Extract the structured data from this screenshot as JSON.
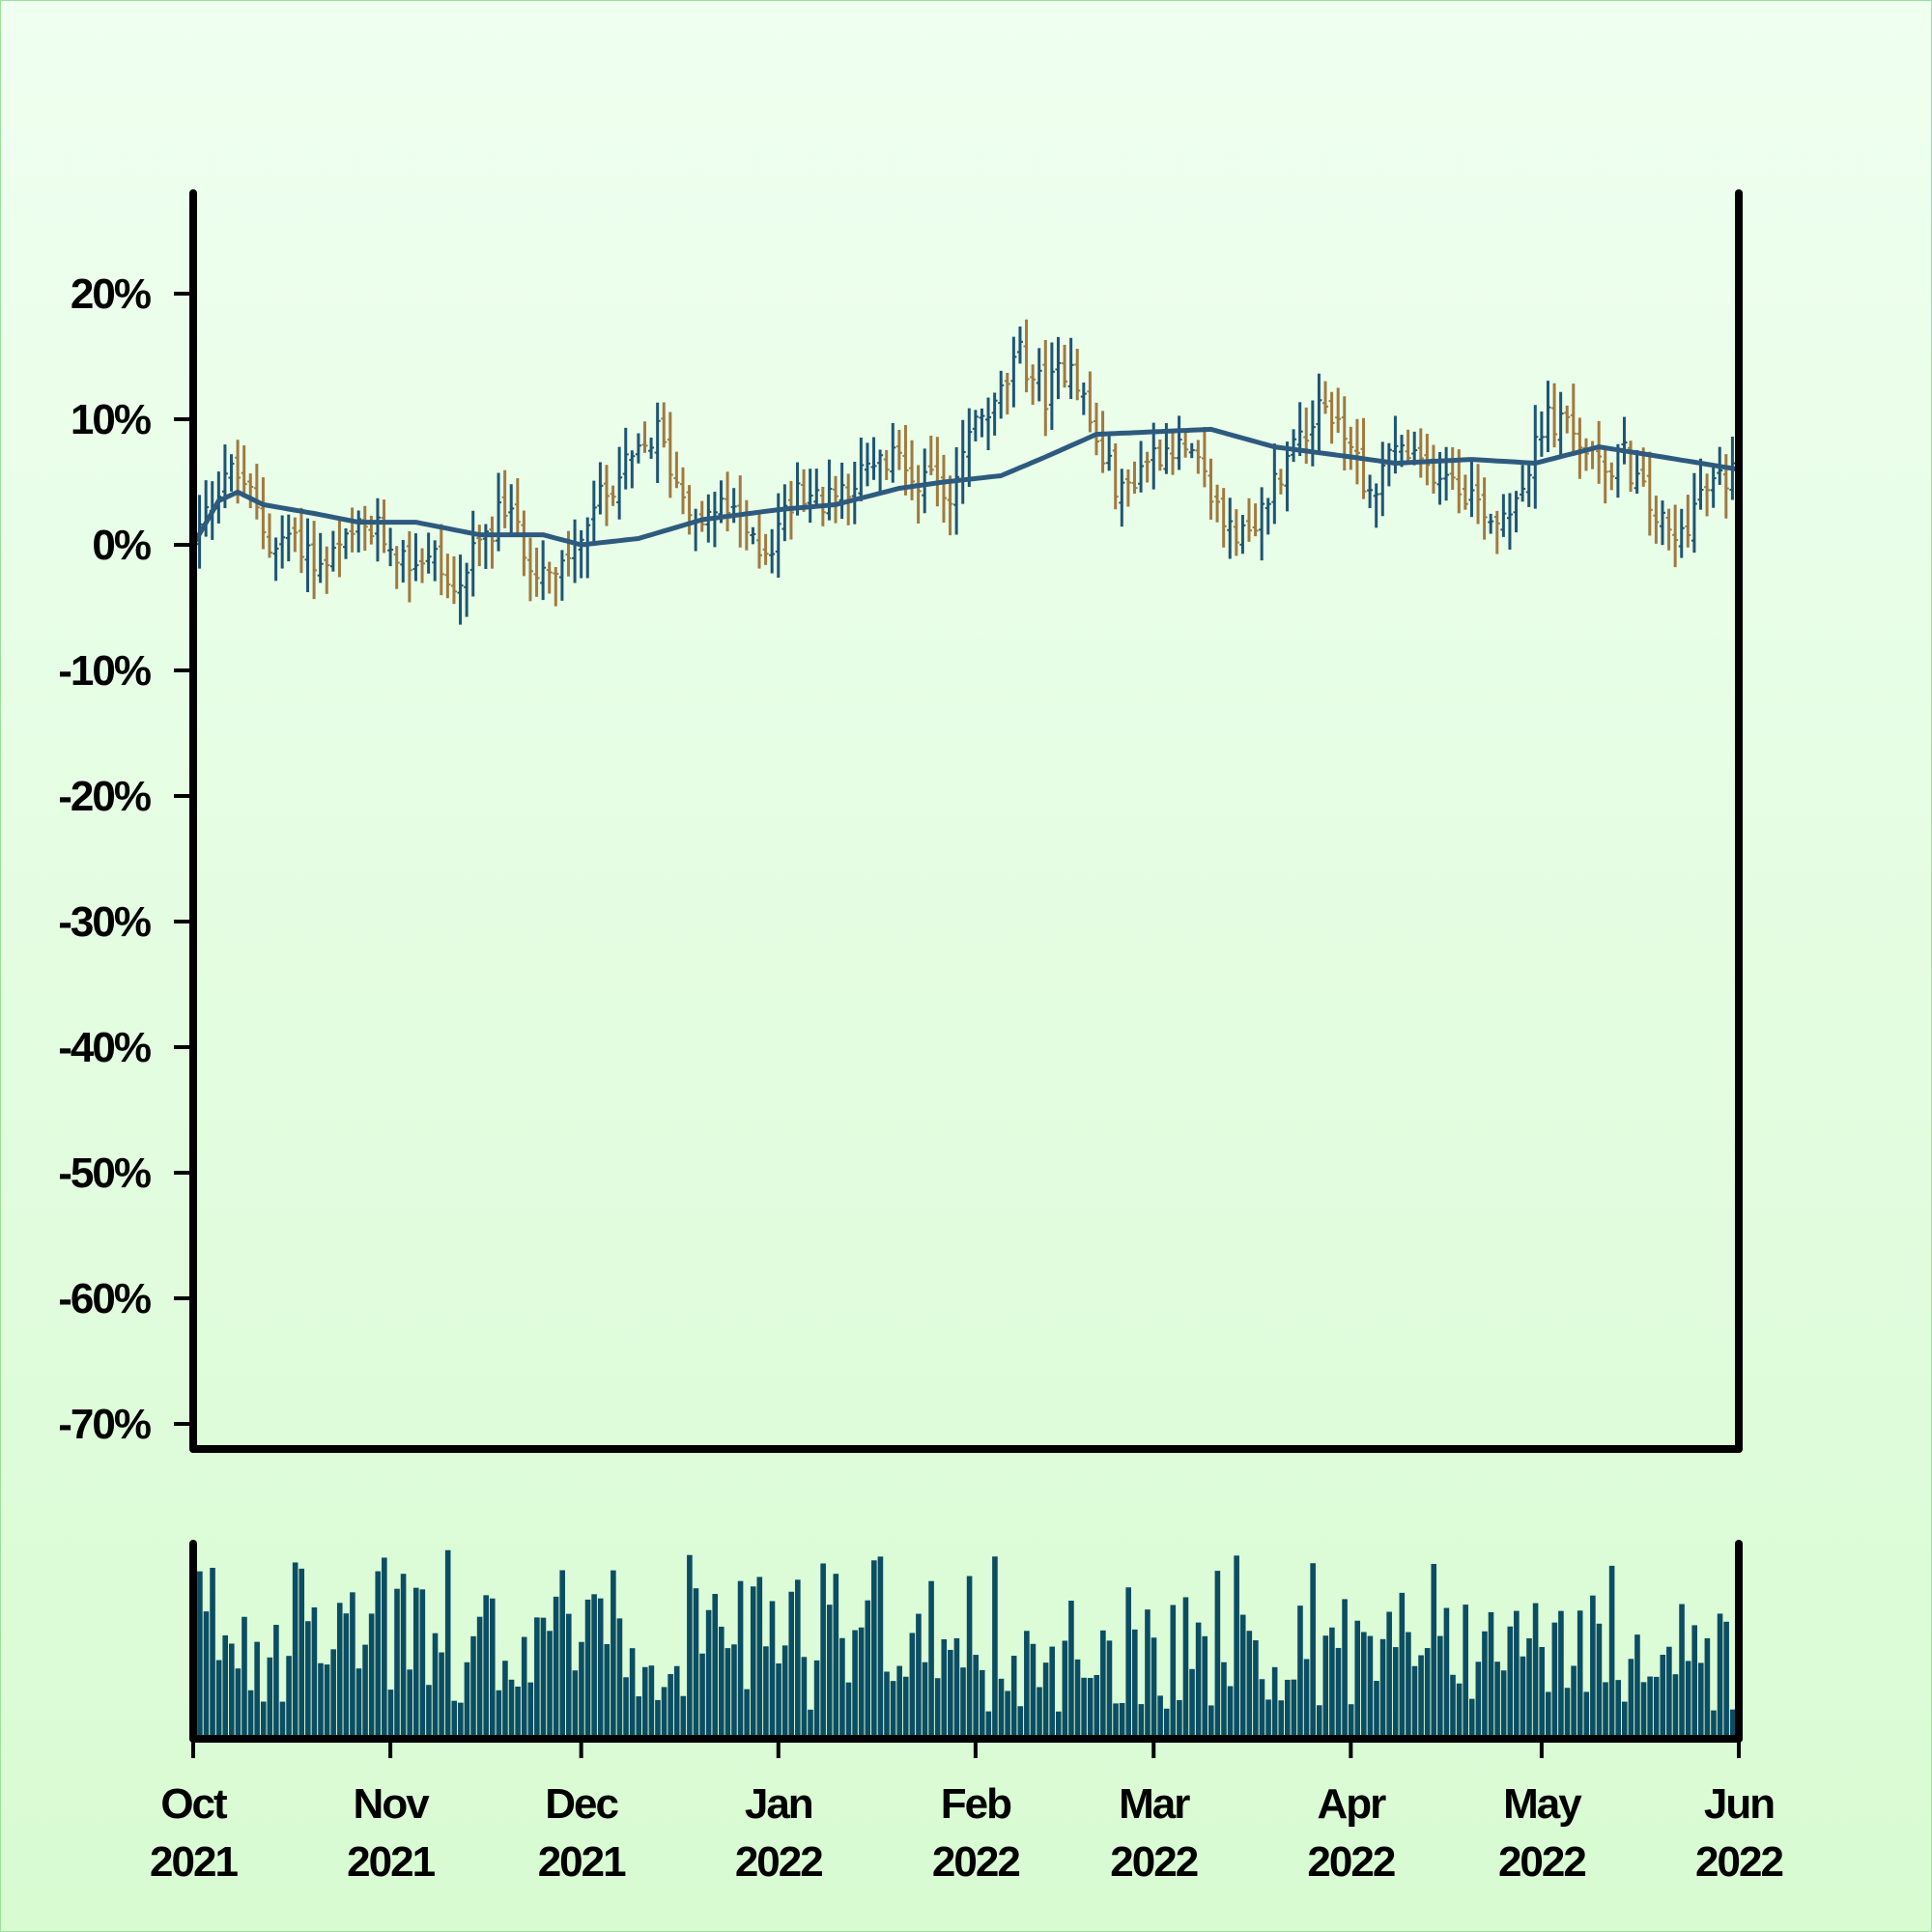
{
  "chart_data": [
    {
      "type": "ohlc",
      "title": "",
      "xlabel": "",
      "ylabel": "",
      "y_unit": "%",
      "ylim": [
        -72,
        28
      ],
      "y_ticks": [
        20,
        10,
        0,
        -10,
        -20,
        -30,
        -40,
        -50,
        -60,
        -70
      ],
      "y_tick_labels": [
        "20%",
        "10%",
        "0%",
        "-10%",
        "-20%",
        "-30%",
        "-40%",
        "-50%",
        "-60%",
        "-70%"
      ],
      "x_range": [
        "2021-10-01",
        "2022-06-01"
      ],
      "x_ticks": [
        {
          "date": "2021-10-01",
          "month": "Oct",
          "year": "2021"
        },
        {
          "date": "2021-11-01",
          "month": "Nov",
          "year": "2021"
        },
        {
          "date": "2021-12-01",
          "month": "Dec",
          "year": "2021"
        },
        {
          "date": "2022-01-01",
          "month": "Jan",
          "year": "2022"
        },
        {
          "date": "2022-02-01",
          "month": "Feb",
          "year": "2022"
        },
        {
          "date": "2022-03-01",
          "month": "Mar",
          "year": "2022"
        },
        {
          "date": "2022-04-01",
          "month": "Apr",
          "year": "2022"
        },
        {
          "date": "2022-05-01",
          "month": "May",
          "year": "2022"
        },
        {
          "date": "2022-06-01",
          "month": "Jun",
          "year": "2022"
        }
      ],
      "close_anchors": [
        [
          "2021-10-01",
          0
        ],
        [
          "2021-10-06",
          6
        ],
        [
          "2021-10-09",
          5
        ],
        [
          "2021-10-13",
          0
        ],
        [
          "2021-10-17",
          1
        ],
        [
          "2021-10-21",
          -2
        ],
        [
          "2021-10-27",
          1
        ],
        [
          "2021-10-30",
          1
        ],
        [
          "2021-11-03",
          -1
        ],
        [
          "2021-11-08",
          -1
        ],
        [
          "2021-11-11",
          -4
        ],
        [
          "2021-11-15",
          0
        ],
        [
          "2021-11-19",
          3
        ],
        [
          "2021-11-23",
          -1
        ],
        [
          "2021-11-27",
          -3
        ],
        [
          "2021-12-02",
          2
        ],
        [
          "2021-12-06",
          5
        ],
        [
          "2021-12-10",
          7
        ],
        [
          "2021-12-13",
          9
        ],
        [
          "2021-12-16",
          5
        ],
        [
          "2021-12-20",
          2
        ],
        [
          "2021-12-24",
          3
        ],
        [
          "2021-12-28",
          0
        ],
        [
          "2021-12-31",
          0
        ],
        [
          "2022-01-04",
          5
        ],
        [
          "2022-01-08",
          3
        ],
        [
          "2022-01-12",
          5
        ],
        [
          "2022-01-16",
          6
        ],
        [
          "2022-01-20",
          7
        ],
        [
          "2022-01-24",
          5
        ],
        [
          "2022-01-28",
          4
        ],
        [
          "2022-01-31",
          9
        ],
        [
          "2022-02-04",
          11
        ],
        [
          "2022-02-08",
          15
        ],
        [
          "2022-02-12",
          12
        ],
        [
          "2022-02-16",
          15
        ],
        [
          "2022-02-20",
          8
        ],
        [
          "2022-02-24",
          4
        ],
        [
          "2022-02-28",
          7
        ],
        [
          "2022-03-04",
          8
        ],
        [
          "2022-03-08",
          6
        ],
        [
          "2022-03-12",
          2
        ],
        [
          "2022-03-16",
          0
        ],
        [
          "2022-03-20",
          5
        ],
        [
          "2022-03-24",
          9
        ],
        [
          "2022-03-28",
          11
        ],
        [
          "2022-04-01",
          8
        ],
        [
          "2022-04-04",
          4
        ],
        [
          "2022-04-08",
          8
        ],
        [
          "2022-04-12",
          6
        ],
        [
          "2022-04-16",
          6
        ],
        [
          "2022-04-20",
          4
        ],
        [
          "2022-04-24",
          2
        ],
        [
          "2022-04-28",
          5
        ],
        [
          "2022-05-02",
          10
        ],
        [
          "2022-05-06",
          9
        ],
        [
          "2022-05-10",
          6
        ],
        [
          "2022-05-14",
          7
        ],
        [
          "2022-05-18",
          3
        ],
        [
          "2022-05-22",
          0
        ],
        [
          "2022-05-26",
          4
        ],
        [
          "2022-06-01",
          6
        ]
      ],
      "moving_average_anchors": [
        [
          "2021-10-01",
          0
        ],
        [
          "2021-10-05",
          3.5
        ],
        [
          "2021-10-08",
          4.2
        ],
        [
          "2021-10-12",
          3.2
        ],
        [
          "2021-10-20",
          2.5
        ],
        [
          "2021-10-27",
          1.8
        ],
        [
          "2021-11-05",
          1.8
        ],
        [
          "2021-11-15",
          0.8
        ],
        [
          "2021-11-25",
          0.8
        ],
        [
          "2021-12-01",
          0
        ],
        [
          "2021-12-10",
          0.5
        ],
        [
          "2021-12-20",
          2
        ],
        [
          "2022-01-01",
          2.8
        ],
        [
          "2022-01-10",
          3.2
        ],
        [
          "2022-01-20",
          4.5
        ],
        [
          "2022-01-27",
          5
        ],
        [
          "2022-02-05",
          5.5
        ],
        [
          "2022-02-12",
          7
        ],
        [
          "2022-02-20",
          8.8
        ],
        [
          "2022-03-01",
          9
        ],
        [
          "2022-03-10",
          9.2
        ],
        [
          "2022-03-20",
          7.8
        ],
        [
          "2022-04-01",
          7
        ],
        [
          "2022-04-08",
          6.5
        ],
        [
          "2022-04-20",
          6.8
        ],
        [
          "2022-04-30",
          6.5
        ],
        [
          "2022-05-10",
          7.8
        ],
        [
          "2022-05-20",
          7
        ],
        [
          "2022-06-01",
          6
        ]
      ],
      "up_color": "#1e5573",
      "down_color": "#a07a40",
      "ma_color": "#2d5a7e",
      "grid": false
    },
    {
      "type": "bar",
      "name": "volume",
      "x_range": [
        "2021-10-01",
        "2022-06-01"
      ],
      "bar_color": "#0b4d62",
      "volume_profile": [
        [
          "2021-10-01",
          0.68
        ],
        [
          "2021-10-25",
          0.72
        ],
        [
          "2021-11-20",
          0.62
        ],
        [
          "2021-12-02",
          0.58
        ],
        [
          "2021-12-15",
          0.65
        ],
        [
          "2022-01-05",
          0.6
        ],
        [
          "2022-01-27",
          0.45
        ],
        [
          "2022-02-05",
          0.45
        ],
        [
          "2022-02-15",
          0.55
        ],
        [
          "2022-03-05",
          0.6
        ],
        [
          "2022-03-20",
          0.5
        ],
        [
          "2022-04-05",
          0.62
        ],
        [
          "2022-04-25",
          0.5
        ],
        [
          "2022-05-10",
          0.55
        ],
        [
          "2022-06-01",
          0.5
        ]
      ]
    }
  ]
}
